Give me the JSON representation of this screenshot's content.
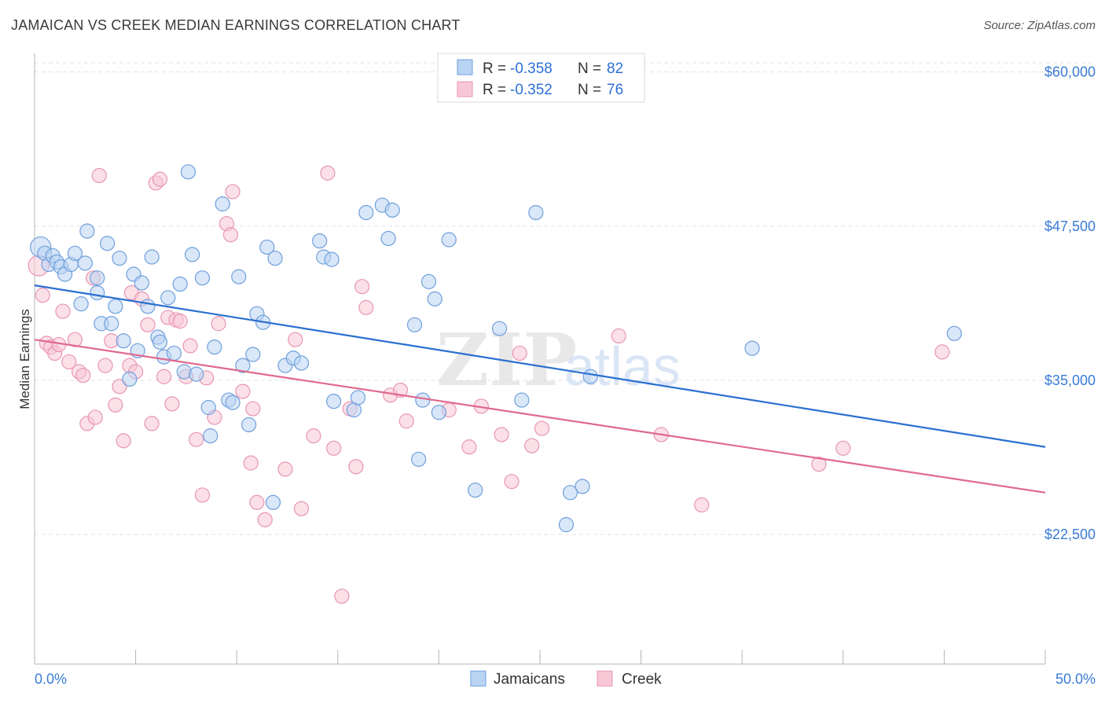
{
  "title": "JAMAICAN VS CREEK MEDIAN EARNINGS CORRELATION CHART",
  "source": "Source: ZipAtlas.com",
  "watermark": "ZIPatlas",
  "colors": {
    "jamaicans_fill": "#b9d3f3",
    "jamaicans_stroke": "#6f9fdc",
    "jamaicans_line": "#2a6fd1",
    "creek_fill": "#f7c7d6",
    "creek_stroke": "#e896b1",
    "creek_line": "#e0698f",
    "tick_label": "#3a7bd5"
  },
  "legend": {
    "r_label": "R =",
    "n_label": "N =",
    "rows": [
      {
        "series": "Jamaicans",
        "r": "-0.358",
        "n": "82"
      },
      {
        "series": "Creek",
        "r": "-0.352",
        "n": "76"
      }
    ]
  },
  "bottom_legend": [
    "Jamaicans",
    "Creek"
  ],
  "chart_data": {
    "type": "scatter",
    "title": "JAMAICAN VS CREEK MEDIAN EARNINGS CORRELATION CHART",
    "xlabel": "",
    "ylabel": "Median Earnings",
    "xlim": [
      0,
      50
    ],
    "ylim": [
      12000,
      61500
    ],
    "x_tick_labels": [
      "0.0%",
      "50.0%"
    ],
    "y_ticks": [
      22500,
      35000,
      47500,
      60000
    ],
    "y_tick_labels": [
      "$22,500",
      "$35,000",
      "$47,500",
      "$60,000"
    ],
    "grid": true,
    "legend_position": "top-center",
    "series": [
      {
        "name": "Jamaicans",
        "r": -0.358,
        "n": 82,
        "trend": {
          "x": [
            0,
            50
          ],
          "y": [
            42700,
            29600
          ]
        },
        "points": [
          [
            0.3,
            45800
          ],
          [
            0.5,
            45300
          ],
          [
            0.7,
            44400
          ],
          [
            0.9,
            45100
          ],
          [
            1.1,
            44600
          ],
          [
            1.3,
            44200
          ],
          [
            1.5,
            43600
          ],
          [
            1.8,
            44400
          ],
          [
            2.0,
            45300
          ],
          [
            2.3,
            41200
          ],
          [
            2.5,
            44500
          ],
          [
            2.6,
            47100
          ],
          [
            3.1,
            43300
          ],
          [
            3.1,
            42100
          ],
          [
            3.3,
            39600
          ],
          [
            3.6,
            46100
          ],
          [
            3.8,
            39600
          ],
          [
            4.0,
            41000
          ],
          [
            4.2,
            44900
          ],
          [
            4.4,
            38200
          ],
          [
            4.7,
            35100
          ],
          [
            4.9,
            43600
          ],
          [
            5.1,
            37400
          ],
          [
            5.3,
            42900
          ],
          [
            5.6,
            41000
          ],
          [
            5.8,
            45000
          ],
          [
            6.1,
            38500
          ],
          [
            6.2,
            38100
          ],
          [
            6.4,
            36900
          ],
          [
            6.6,
            41700
          ],
          [
            6.9,
            37200
          ],
          [
            7.2,
            42800
          ],
          [
            7.4,
            35700
          ],
          [
            7.6,
            51900
          ],
          [
            7.8,
            45200
          ],
          [
            8.0,
            35500
          ],
          [
            8.3,
            43300
          ],
          [
            8.6,
            32800
          ],
          [
            8.7,
            30500
          ],
          [
            8.9,
            37700
          ],
          [
            9.3,
            49300
          ],
          [
            9.6,
            33400
          ],
          [
            9.8,
            33200
          ],
          [
            10.1,
            43400
          ],
          [
            10.3,
            36200
          ],
          [
            10.6,
            31400
          ],
          [
            10.8,
            37100
          ],
          [
            11.0,
            40400
          ],
          [
            11.3,
            39700
          ],
          [
            11.5,
            45800
          ],
          [
            11.8,
            25100
          ],
          [
            11.9,
            44900
          ],
          [
            12.4,
            36200
          ],
          [
            12.8,
            36800
          ],
          [
            13.2,
            36400
          ],
          [
            14.1,
            46300
          ],
          [
            14.3,
            45000
          ],
          [
            14.7,
            44800
          ],
          [
            14.8,
            33300
          ],
          [
            15.8,
            32600
          ],
          [
            16.0,
            33600
          ],
          [
            16.4,
            48600
          ],
          [
            17.2,
            49200
          ],
          [
            17.5,
            46500
          ],
          [
            17.7,
            48800
          ],
          [
            18.8,
            39500
          ],
          [
            19.0,
            28600
          ],
          [
            19.2,
            33400
          ],
          [
            19.5,
            43000
          ],
          [
            19.8,
            41600
          ],
          [
            20.0,
            32400
          ],
          [
            20.5,
            46400
          ],
          [
            21.8,
            26100
          ],
          [
            23.0,
            39200
          ],
          [
            24.1,
            33400
          ],
          [
            24.8,
            48600
          ],
          [
            26.5,
            25900
          ],
          [
            27.1,
            26400
          ],
          [
            27.5,
            35300
          ],
          [
            26.3,
            23300
          ],
          [
            35.5,
            37600
          ],
          [
            45.5,
            38800
          ]
        ]
      },
      {
        "name": "Creek",
        "r": -0.352,
        "n": 76,
        "trend": {
          "x": [
            0,
            50
          ],
          "y": [
            38300,
            25900
          ]
        },
        "points": [
          [
            0.2,
            44300
          ],
          [
            0.4,
            41900
          ],
          [
            0.6,
            38000
          ],
          [
            0.8,
            37700
          ],
          [
            1.0,
            37200
          ],
          [
            1.2,
            37900
          ],
          [
            1.4,
            40600
          ],
          [
            1.7,
            36500
          ],
          [
            2.0,
            38300
          ],
          [
            2.2,
            35700
          ],
          [
            2.4,
            35400
          ],
          [
            2.6,
            31500
          ],
          [
            2.9,
            43300
          ],
          [
            3.0,
            32000
          ],
          [
            3.2,
            51600
          ],
          [
            3.5,
            36200
          ],
          [
            3.8,
            38200
          ],
          [
            4.0,
            33000
          ],
          [
            4.2,
            34500
          ],
          [
            4.4,
            30100
          ],
          [
            4.7,
            36200
          ],
          [
            4.8,
            42100
          ],
          [
            5.0,
            35700
          ],
          [
            5.3,
            41600
          ],
          [
            5.6,
            39500
          ],
          [
            5.8,
            31500
          ],
          [
            6.0,
            51000
          ],
          [
            6.2,
            51300
          ],
          [
            6.4,
            35300
          ],
          [
            6.6,
            40100
          ],
          [
            6.8,
            33100
          ],
          [
            7.0,
            39900
          ],
          [
            7.2,
            39800
          ],
          [
            7.5,
            35300
          ],
          [
            7.7,
            37800
          ],
          [
            8.0,
            30200
          ],
          [
            8.3,
            25700
          ],
          [
            8.5,
            35200
          ],
          [
            8.9,
            32000
          ],
          [
            9.1,
            39600
          ],
          [
            9.5,
            47700
          ],
          [
            9.7,
            46800
          ],
          [
            9.8,
            50300
          ],
          [
            10.3,
            34100
          ],
          [
            10.7,
            28300
          ],
          [
            10.8,
            32700
          ],
          [
            11.0,
            25100
          ],
          [
            11.4,
            23700
          ],
          [
            12.4,
            27800
          ],
          [
            12.9,
            38300
          ],
          [
            13.2,
            24600
          ],
          [
            13.8,
            30500
          ],
          [
            14.5,
            51800
          ],
          [
            14.8,
            29500
          ],
          [
            15.2,
            17500
          ],
          [
            15.6,
            32700
          ],
          [
            15.9,
            28000
          ],
          [
            16.2,
            42600
          ],
          [
            16.4,
            40900
          ],
          [
            17.6,
            33800
          ],
          [
            18.1,
            34200
          ],
          [
            18.4,
            31700
          ],
          [
            20.5,
            32600
          ],
          [
            21.5,
            29600
          ],
          [
            22.1,
            32900
          ],
          [
            23.1,
            30600
          ],
          [
            23.6,
            26800
          ],
          [
            24.0,
            37200
          ],
          [
            24.6,
            29700
          ],
          [
            25.1,
            31100
          ],
          [
            28.9,
            38600
          ],
          [
            31.0,
            30600
          ],
          [
            33.0,
            24900
          ],
          [
            38.8,
            28200
          ],
          [
            40.0,
            29500
          ],
          [
            44.9,
            37300
          ]
        ]
      }
    ]
  }
}
